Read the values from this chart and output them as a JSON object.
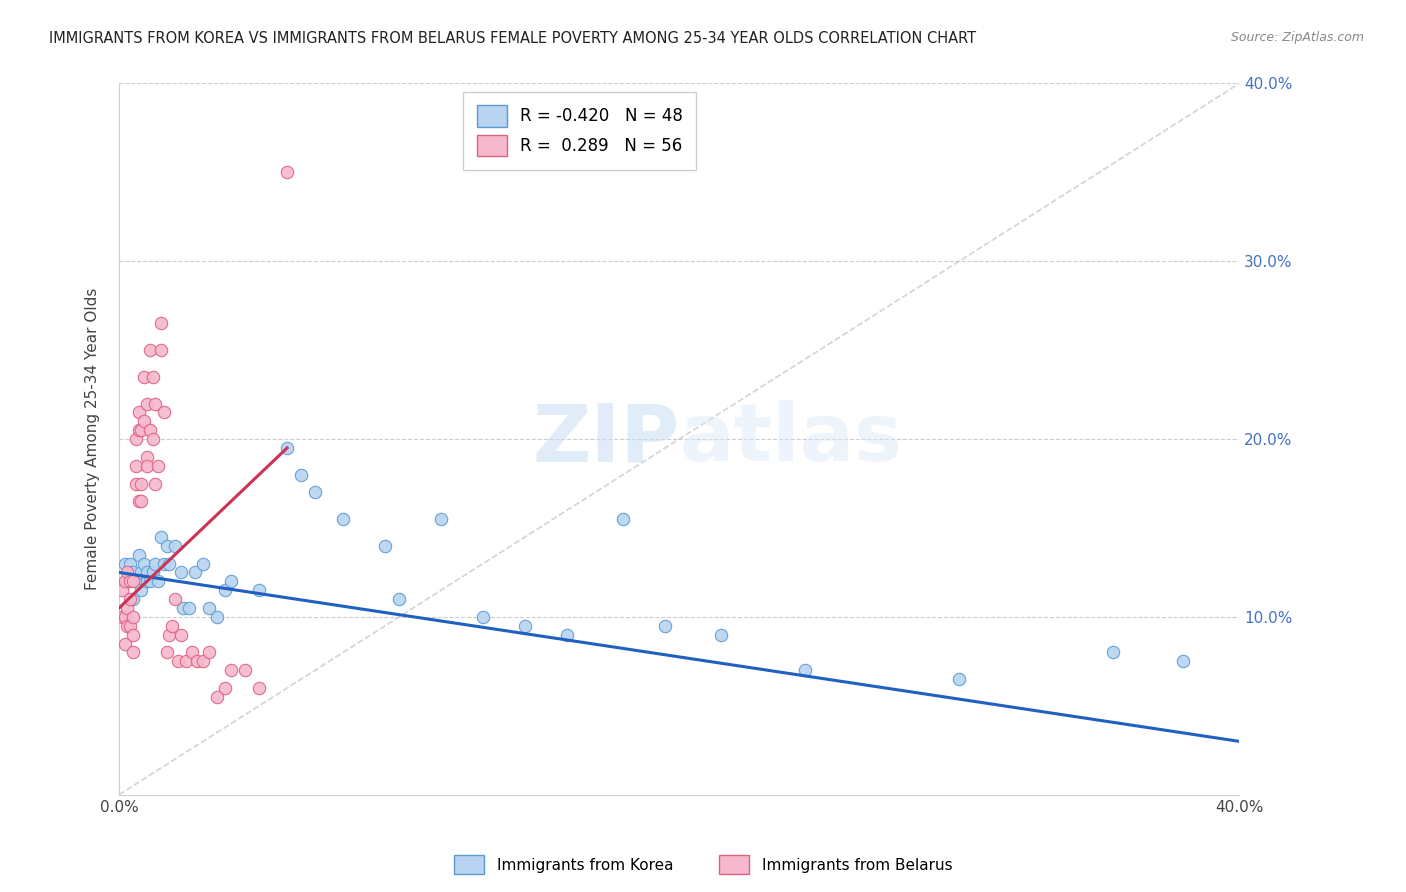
{
  "title": "IMMIGRANTS FROM KOREA VS IMMIGRANTS FROM BELARUS FEMALE POVERTY AMONG 25-34 YEAR OLDS CORRELATION CHART",
  "source": "Source: ZipAtlas.com",
  "ylabel": "Female Poverty Among 25-34 Year Olds",
  "xlim": [
    0,
    0.4
  ],
  "ylim": [
    0,
    0.4
  ],
  "korea_R": -0.42,
  "korea_N": 48,
  "belarus_R": 0.289,
  "belarus_N": 56,
  "korea_color": "#b8d4f0",
  "korea_edge_color": "#5b9bd5",
  "belarus_color": "#f5b8cc",
  "belarus_edge_color": "#e06080",
  "korea_trend_color": "#2060c0",
  "belarus_trend_color": "#cc3355",
  "diagonal_color": "#c8c8c8",
  "korea_x": [
    0.002,
    0.003,
    0.004,
    0.005,
    0.005,
    0.006,
    0.007,
    0.008,
    0.008,
    0.009,
    0.01,
    0.01,
    0.011,
    0.012,
    0.013,
    0.014,
    0.015,
    0.016,
    0.017,
    0.018,
    0.02,
    0.022,
    0.023,
    0.025,
    0.027,
    0.03,
    0.032,
    0.035,
    0.038,
    0.04,
    0.05,
    0.06,
    0.065,
    0.07,
    0.08,
    0.095,
    0.1,
    0.115,
    0.13,
    0.145,
    0.16,
    0.18,
    0.195,
    0.215,
    0.245,
    0.3,
    0.355,
    0.38
  ],
  "korea_y": [
    0.13,
    0.12,
    0.13,
    0.125,
    0.11,
    0.12,
    0.135,
    0.115,
    0.125,
    0.13,
    0.12,
    0.125,
    0.12,
    0.125,
    0.13,
    0.12,
    0.145,
    0.13,
    0.14,
    0.13,
    0.14,
    0.125,
    0.105,
    0.105,
    0.125,
    0.13,
    0.105,
    0.1,
    0.115,
    0.12,
    0.115,
    0.195,
    0.18,
    0.17,
    0.155,
    0.14,
    0.11,
    0.155,
    0.1,
    0.095,
    0.09,
    0.155,
    0.095,
    0.09,
    0.07,
    0.065,
    0.08,
    0.075
  ],
  "belarus_x": [
    0.001,
    0.001,
    0.002,
    0.002,
    0.002,
    0.003,
    0.003,
    0.003,
    0.004,
    0.004,
    0.004,
    0.005,
    0.005,
    0.005,
    0.005,
    0.006,
    0.006,
    0.006,
    0.007,
    0.007,
    0.007,
    0.008,
    0.008,
    0.008,
    0.009,
    0.009,
    0.01,
    0.01,
    0.01,
    0.011,
    0.011,
    0.012,
    0.012,
    0.013,
    0.013,
    0.014,
    0.015,
    0.015,
    0.016,
    0.017,
    0.018,
    0.019,
    0.02,
    0.021,
    0.022,
    0.024,
    0.026,
    0.028,
    0.03,
    0.032,
    0.035,
    0.038,
    0.04,
    0.045,
    0.05,
    0.06
  ],
  "belarus_y": [
    0.115,
    0.1,
    0.12,
    0.1,
    0.085,
    0.125,
    0.105,
    0.095,
    0.12,
    0.11,
    0.095,
    0.12,
    0.1,
    0.09,
    0.08,
    0.2,
    0.185,
    0.175,
    0.215,
    0.205,
    0.165,
    0.205,
    0.175,
    0.165,
    0.235,
    0.21,
    0.22,
    0.19,
    0.185,
    0.25,
    0.205,
    0.235,
    0.2,
    0.22,
    0.175,
    0.185,
    0.265,
    0.25,
    0.215,
    0.08,
    0.09,
    0.095,
    0.11,
    0.075,
    0.09,
    0.075,
    0.08,
    0.075,
    0.075,
    0.08,
    0.055,
    0.06,
    0.07,
    0.07,
    0.06,
    0.35
  ]
}
